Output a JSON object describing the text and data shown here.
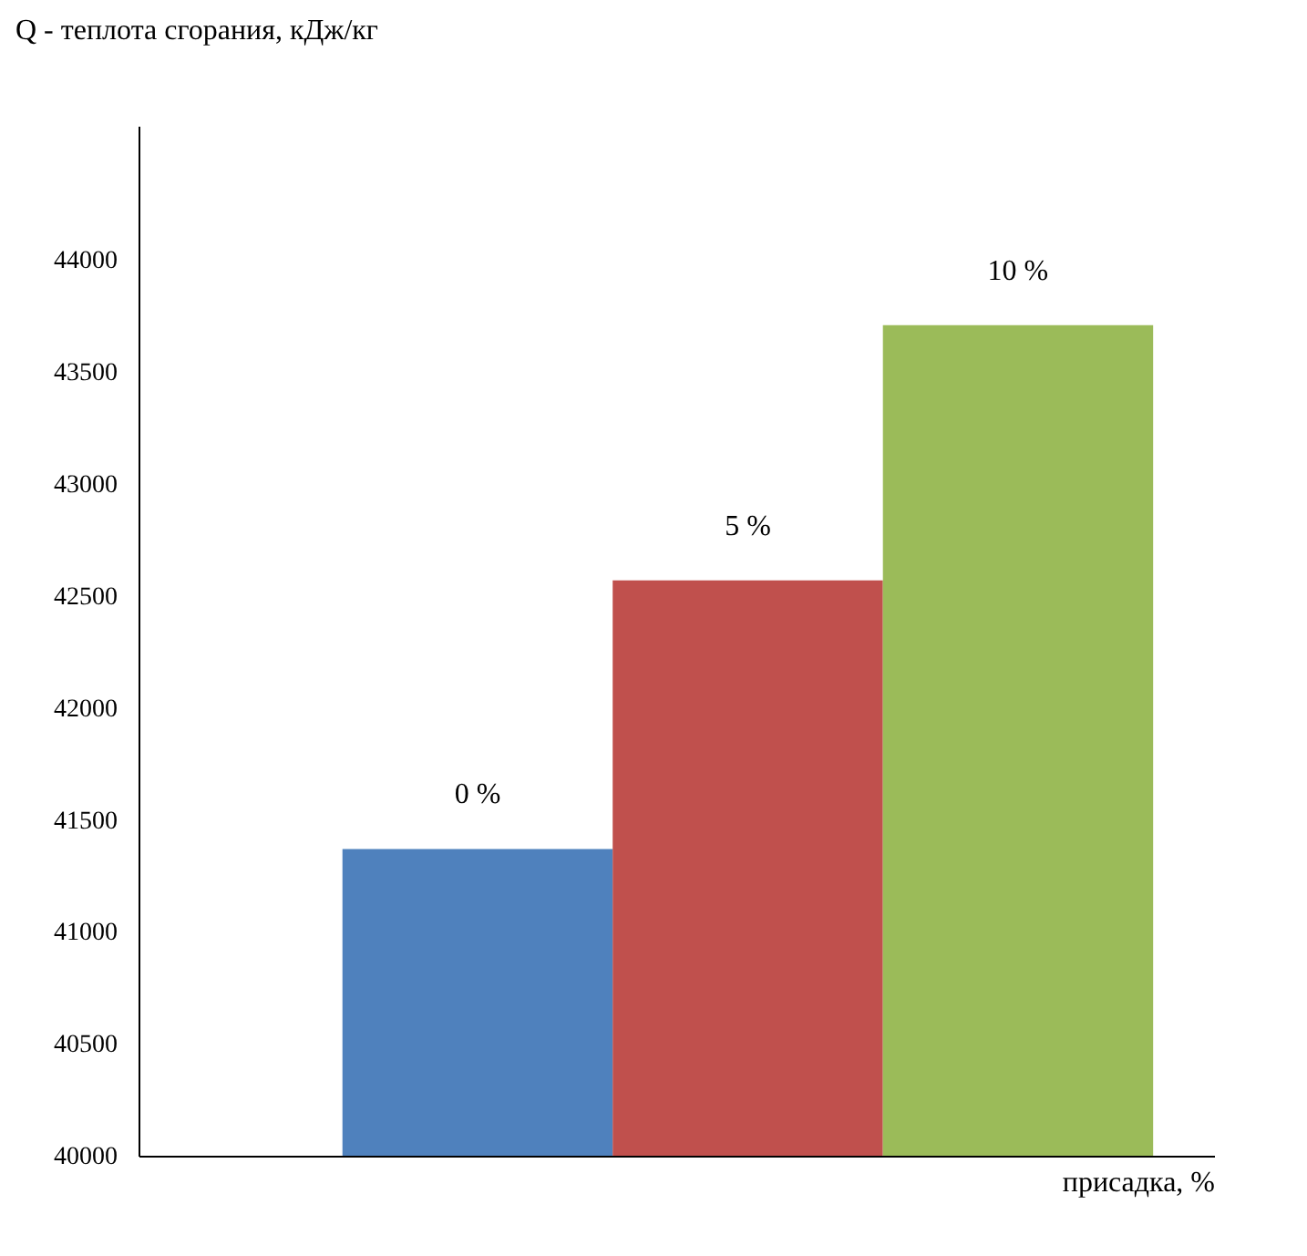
{
  "chart_data": {
    "type": "bar",
    "ylabel": "Q - теплота сгорания, кДж/кг",
    "xlabel": "присадка, %",
    "categories": [
      "0 %",
      "5 %",
      "10 %"
    ],
    "values": [
      41370,
      42570,
      43710
    ],
    "colors": [
      "#4f81bd",
      "#c0504d",
      "#9bbb59"
    ],
    "ylim": [
      40000,
      44600
    ],
    "yticks": [
      40000,
      40500,
      41000,
      41500,
      42000,
      42500,
      43000,
      43500,
      44000
    ],
    "grid": false
  }
}
